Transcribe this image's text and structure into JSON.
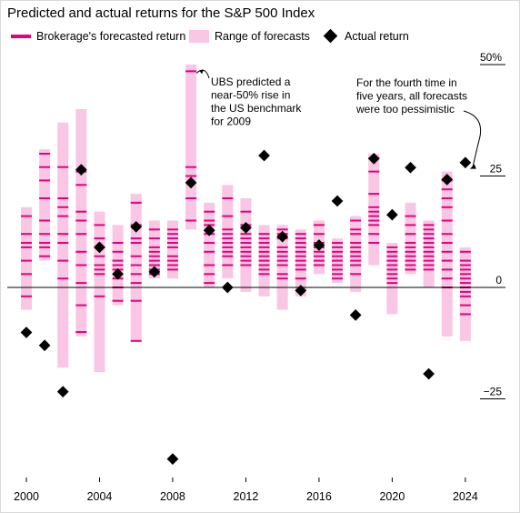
{
  "title": "Predicted and actual returns for the S&P 500 Index",
  "legend": {
    "forecast_label": "Brokerage's forecasted return",
    "range_label": "Range of forecasts",
    "actual_label": "Actual return"
  },
  "colors": {
    "forecast": "#e6007e",
    "range": "#f9c6e4",
    "actual": "#000000",
    "axis": "#000000"
  },
  "annotations": [
    {
      "text_lines": [
        "UBS predicted a",
        "near-50% rise in",
        "the US benchmark",
        "for 2009"
      ],
      "year": 2009,
      "value": 48.5
    },
    {
      "text_lines": [
        "For the fourth time in",
        "five years, all forecasts",
        "were too pessimistic"
      ],
      "year": 2024,
      "value": 26
    }
  ],
  "chart_data": {
    "type": "scatter",
    "title": "Predicted and actual returns for the S&P 500 Index",
    "xlabel": "",
    "ylabel": "",
    "xlim": [
      2000,
      2024
    ],
    "ylim": [
      -38,
      52
    ],
    "x_ticks": [
      2000,
      2004,
      2008,
      2012,
      2016,
      2020,
      2024
    ],
    "y_ticks": [
      {
        "value": 50,
        "label": "50%"
      },
      {
        "value": 25,
        "label": "25"
      },
      {
        "value": 0,
        "label": "0"
      },
      {
        "value": -25,
        "label": "−25"
      }
    ],
    "grid": false,
    "legend_position": "top-left",
    "series": [
      {
        "name": "Range of forecasts",
        "kind": "range",
        "points": [
          {
            "x": 2000,
            "low": -5,
            "high": 18
          },
          {
            "x": 2001,
            "low": 6,
            "high": 31
          },
          {
            "x": 2002,
            "low": -18,
            "high": 37
          },
          {
            "x": 2003,
            "low": -11,
            "high": 40
          },
          {
            "x": 2004,
            "low": -19,
            "high": 17
          },
          {
            "x": 2005,
            "low": -4,
            "high": 14
          },
          {
            "x": 2006,
            "low": -12,
            "high": 21
          },
          {
            "x": 2007,
            "low": 2,
            "high": 15
          },
          {
            "x": 2008,
            "low": 2,
            "high": 15
          },
          {
            "x": 2009,
            "low": 13,
            "high": 50
          },
          {
            "x": 2010,
            "low": 0,
            "high": 19
          },
          {
            "x": 2011,
            "low": 2,
            "high": 23
          },
          {
            "x": 2012,
            "low": -1,
            "high": 20
          },
          {
            "x": 2013,
            "low": -2,
            "high": 14
          },
          {
            "x": 2014,
            "low": -5,
            "high": 14
          },
          {
            "x": 2015,
            "low": -2,
            "high": 13
          },
          {
            "x": 2016,
            "low": 3,
            "high": 15
          },
          {
            "x": 2017,
            "low": 1,
            "high": 11
          },
          {
            "x": 2018,
            "low": -1,
            "high": 16
          },
          {
            "x": 2019,
            "low": 5,
            "high": 30
          },
          {
            "x": 2020,
            "low": -6,
            "high": 10
          },
          {
            "x": 2021,
            "low": 3,
            "high": 19
          },
          {
            "x": 2022,
            "low": 0,
            "high": 15
          },
          {
            "x": 2023,
            "low": -11,
            "high": 26
          },
          {
            "x": 2024,
            "low": -12,
            "high": 9
          }
        ]
      },
      {
        "name": "Brokerage's forecasted return",
        "kind": "forecast-ticks",
        "points": [
          {
            "x": 2000,
            "values": [
              16,
              12,
              10,
              9,
              6,
              3,
              -2
            ]
          },
          {
            "x": 2001,
            "values": [
              30,
              27,
              24,
              20,
              15,
              12,
              10,
              9,
              7
            ]
          },
          {
            "x": 2002,
            "values": [
              27,
              20,
              18,
              16,
              12,
              10,
              6,
              2
            ]
          },
          {
            "x": 2003,
            "values": [
              26,
              23,
              17,
              15,
              12,
              8,
              5,
              1,
              -4,
              -10
            ]
          },
          {
            "x": 2004,
            "values": [
              14,
              11,
              9,
              7,
              5,
              4,
              3,
              -2
            ]
          },
          {
            "x": 2005,
            "values": [
              10,
              8,
              6,
              5,
              4,
              2,
              0,
              -3
            ]
          },
          {
            "x": 2006,
            "values": [
              19,
              14,
              11,
              10,
              7,
              5,
              3,
              1,
              -3,
              -12
            ]
          },
          {
            "x": 2007,
            "values": [
              13,
              11,
              9,
              8,
              7,
              6,
              5,
              4,
              3
            ]
          },
          {
            "x": 2008,
            "values": [
              13,
              12,
              11,
              10,
              9,
              7,
              6,
              5,
              4
            ]
          },
          {
            "x": 2009,
            "values": [
              48.5,
              27,
              25,
              20,
              15
            ]
          },
          {
            "x": 2010,
            "values": [
              17,
              15,
              14,
              12,
              10,
              8,
              5,
              3,
              1
            ]
          },
          {
            "x": 2011,
            "values": [
              20,
              16,
              13,
              12,
              11,
              10,
              9,
              8,
              7,
              5
            ]
          },
          {
            "x": 2012,
            "values": [
              17,
              14,
              12,
              11,
              10,
              9,
              8,
              7,
              6,
              5
            ]
          },
          {
            "x": 2013,
            "values": [
              12,
              11,
              10,
              9,
              8,
              7,
              6,
              5,
              4,
              3
            ]
          },
          {
            "x": 2014,
            "values": [
              13,
              12,
              11,
              9,
              8,
              7,
              6,
              5,
              3,
              2
            ]
          },
          {
            "x": 2015,
            "values": [
              12,
              11,
              10,
              9,
              8,
              7,
              6,
              5,
              4,
              2
            ]
          },
          {
            "x": 2016,
            "values": [
              14,
              12,
              10,
              9,
              8,
              7,
              6,
              5
            ]
          },
          {
            "x": 2017,
            "values": [
              10,
              9,
              8,
              7,
              6,
              5,
              4,
              3,
              2
            ]
          },
          {
            "x": 2018,
            "values": [
              15,
              13,
              12,
              10,
              9,
              8,
              7,
              6,
              5,
              3
            ]
          },
          {
            "x": 2019,
            "values": [
              29,
              26,
              21,
              18,
              17,
              16,
              15,
              14,
              12,
              10
            ]
          },
          {
            "x": 2020,
            "values": [
              9,
              8,
              7,
              6,
              5,
              4,
              3,
              2,
              1
            ]
          },
          {
            "x": 2021,
            "values": [
              16,
              14,
              12,
              10,
              9,
              8,
              7,
              6,
              5,
              4
            ]
          },
          {
            "x": 2022,
            "values": [
              14,
              13,
              12,
              11,
              10,
              9,
              8,
              7,
              6,
              5,
              4
            ]
          },
          {
            "x": 2023,
            "values": [
              24,
              22,
              20,
              18,
              15,
              12,
              10,
              8,
              6,
              4,
              2,
              0
            ]
          },
          {
            "x": 2024,
            "values": [
              8,
              6,
              5,
              4,
              3,
              2,
              1,
              0,
              -1,
              -2,
              -4,
              -6
            ]
          }
        ]
      },
      {
        "name": "Actual return",
        "kind": "actual",
        "points": [
          {
            "x": 2000,
            "y": -10.1
          },
          {
            "x": 2001,
            "y": -13
          },
          {
            "x": 2002,
            "y": -23.4
          },
          {
            "x": 2003,
            "y": 26.4
          },
          {
            "x": 2004,
            "y": 9
          },
          {
            "x": 2005,
            "y": 3
          },
          {
            "x": 2006,
            "y": 13.6
          },
          {
            "x": 2007,
            "y": 3.5
          },
          {
            "x": 2008,
            "y": -38.5
          },
          {
            "x": 2009,
            "y": 23.5
          },
          {
            "x": 2010,
            "y": 12.8
          },
          {
            "x": 2011,
            "y": 0
          },
          {
            "x": 2012,
            "y": 13.4
          },
          {
            "x": 2013,
            "y": 29.6
          },
          {
            "x": 2014,
            "y": 11.4
          },
          {
            "x": 2015,
            "y": -0.7
          },
          {
            "x": 2016,
            "y": 9.5
          },
          {
            "x": 2017,
            "y": 19.4
          },
          {
            "x": 2018,
            "y": -6.2
          },
          {
            "x": 2019,
            "y": 28.9
          },
          {
            "x": 2020,
            "y": 16.3
          },
          {
            "x": 2021,
            "y": 26.9
          },
          {
            "x": 2022,
            "y": -19.4
          },
          {
            "x": 2023,
            "y": 24.2
          },
          {
            "x": 2024,
            "y": 28
          }
        ]
      }
    ]
  }
}
